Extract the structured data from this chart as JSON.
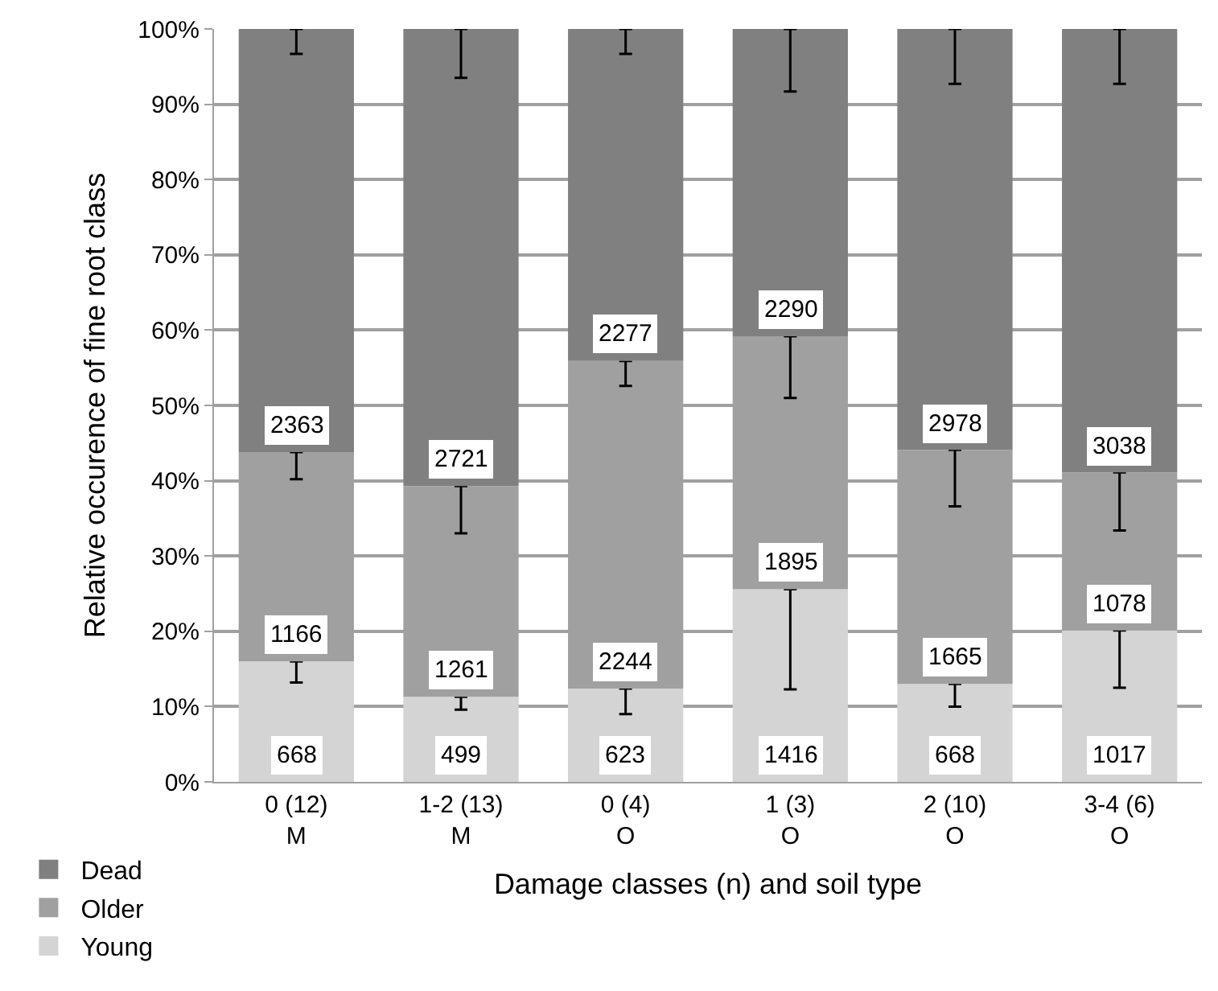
{
  "chart_data": {
    "type": "bar",
    "stacked": true,
    "categories": [
      "0 (12)\nM",
      "1-2 (13)\nM",
      "0 (4)\nO",
      "1 (3)\nO",
      "2 (10)\nO",
      "3-4 (6)\nO"
    ],
    "xlabel": "Damage classes (n) and soil type",
    "ylabel": "Relative occurence of fine root class",
    "ylim": [
      0,
      100
    ],
    "yticks": [
      {
        "value": 0,
        "label": "0%"
      },
      {
        "value": 10,
        "label": "10%"
      },
      {
        "value": 20,
        "label": "20%"
      },
      {
        "value": 30,
        "label": "30%"
      },
      {
        "value": 40,
        "label": "40%"
      },
      {
        "value": 50,
        "label": "50%"
      },
      {
        "value": 60,
        "label": "60%"
      },
      {
        "value": 70,
        "label": "70%"
      },
      {
        "value": 80,
        "label": "80%"
      },
      {
        "value": 90,
        "label": "90%"
      },
      {
        "value": 100,
        "label": "100%"
      }
    ],
    "grid": "y",
    "legend": "bottom left",
    "annotations": [
      {
        "text": "668",
        "x": "0 (12)\nM",
        "y": 0
      },
      {
        "text": "499",
        "x": "1-2 (13)\nM",
        "y": 0
      },
      {
        "text": "623",
        "x": "0 (4)\nO",
        "y": 0
      },
      {
        "text": "1416",
        "x": "1 (3)\nO",
        "y": 0
      },
      {
        "text": "668",
        "x": "2 (10)\nO",
        "y": 0
      },
      {
        "text": "1017",
        "x": "3-4 (6)\nO",
        "y": 0
      },
      {
        "text": "1166",
        "x": "0 (12)\nM",
        "y": 16.0
      },
      {
        "text": "1261",
        "x": "1-2 (13)\nM",
        "y": 11.3
      },
      {
        "text": "2244",
        "x": "0 (4)\nO",
        "y": 12.4
      },
      {
        "text": "1895",
        "x": "1 (3)\nO",
        "y": 25.6
      },
      {
        "text": "1665",
        "x": "2 (10)\nO",
        "y": 13.0
      },
      {
        "text": "1078",
        "x": "3-4 (6)\nO",
        "y": 20.1
      },
      {
        "text": "2363",
        "x": "0 (12)\nM",
        "y": 43.8
      },
      {
        "text": "2721",
        "x": "1-2 (13)\nM",
        "y": 39.3
      },
      {
        "text": "2277",
        "x": "0 (4)\nO",
        "y": 55.9
      },
      {
        "text": "2290",
        "x": "1 (3)\nO",
        "y": 59.2
      },
      {
        "text": "2978",
        "x": "2 (10)\nO",
        "y": 44.1
      },
      {
        "text": "3038",
        "x": "3-4 (6)\nO",
        "y": 41.1
      }
    ],
    "series": [
      {
        "name": "Young",
        "color": "#d4d4d4",
        "values": [
          16.0,
          11.3,
          12.4,
          25.6,
          13.0,
          20.1
        ],
        "errors": [
          [
            13.2,
            16.0
          ],
          [
            9.6,
            11.3
          ],
          [
            9.0,
            12.4
          ],
          [
            12.3,
            25.6
          ],
          [
            10.0,
            13.0
          ],
          [
            12.5,
            20.1
          ]
        ]
      },
      {
        "name": "Older",
        "color": "#a0a0a0",
        "values": [
          27.8,
          28.0,
          43.5,
          33.6,
          31.1,
          21.0
        ],
        "errors": [
          [
            40.2,
            43.8
          ],
          [
            33.0,
            39.3
          ],
          [
            52.6,
            55.9
          ],
          [
            51.0,
            59.2
          ],
          [
            36.6,
            44.1
          ],
          [
            33.4,
            41.1
          ]
        ]
      },
      {
        "name": "Dead",
        "color": "#808080",
        "values": [
          56.2,
          60.7,
          44.1,
          40.8,
          55.9,
          58.9
        ],
        "errors": [
          [
            96.7,
            100
          ],
          [
            93.5,
            100
          ],
          [
            96.7,
            100
          ],
          [
            91.7,
            100
          ],
          [
            92.7,
            100
          ],
          [
            92.7,
            100
          ]
        ]
      }
    ]
  }
}
